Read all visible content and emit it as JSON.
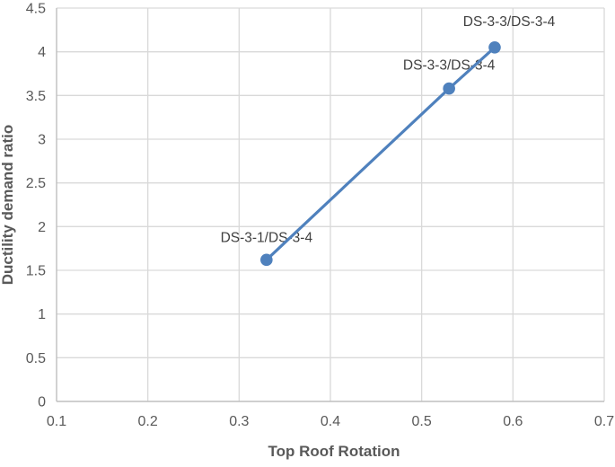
{
  "chart_data": {
    "type": "line",
    "title": "",
    "xlabel": "Top Roof Rotation",
    "ylabel": "Ductility demand ratio",
    "xlim": [
      0.1,
      0.7
    ],
    "ylim": [
      0,
      4.5
    ],
    "x_ticks": [
      0.1,
      0.2,
      0.3,
      0.4,
      0.5,
      0.6,
      0.7
    ],
    "x_tick_labels": [
      "0.1",
      "0.2",
      "0.3",
      "0.4",
      "0.5",
      "0.6",
      "0.7"
    ],
    "y_ticks": [
      0,
      0.5,
      1,
      1.5,
      2,
      2.5,
      3,
      3.5,
      4,
      4.5
    ],
    "y_tick_labels": [
      "0",
      "0.5",
      "1",
      "1.5",
      "2",
      "2.5",
      "3",
      "3.5",
      "4",
      "4.5"
    ],
    "grid": {
      "horizontal": true,
      "vertical": true
    },
    "legend_position": "none",
    "colors": {
      "series": "#4F81BD",
      "gridline": "#D9D9D9",
      "axis_line": "#BFBFBF",
      "tick_label": "#595959",
      "axis_title": "#595959",
      "data_label": "#3F3F3F",
      "background": "#FFFFFF"
    },
    "series": [
      {
        "marker": "circle",
        "points": [
          {
            "x": 0.33,
            "y": 1.62,
            "label": "DS-3-1/DS-3-4"
          },
          {
            "x": 0.53,
            "y": 3.58,
            "label": "DS-3-3/DS-3-4"
          },
          {
            "x": 0.58,
            "y": 4.05,
            "label": "DS-3-3/DS-3-4"
          }
        ]
      }
    ]
  }
}
